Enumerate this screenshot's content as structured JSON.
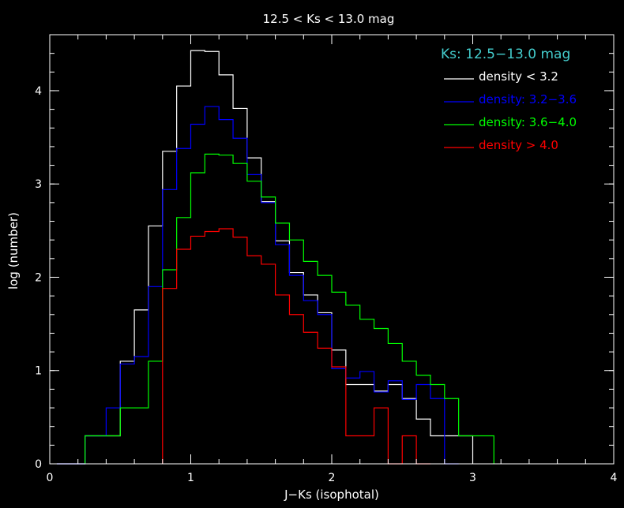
{
  "chart_data": {
    "type": "line",
    "step": true,
    "title": "12.5 < Ks < 13.0 mag",
    "xlabel": "J−Ks (isophotal)",
    "ylabel": "log (number)",
    "xlim": [
      0,
      4
    ],
    "ylim": [
      0,
      4.6
    ],
    "xticks": [
      0,
      1,
      2,
      3,
      4
    ],
    "yticks": [
      0,
      1,
      2,
      3,
      4
    ],
    "xtick_labels": [
      "0",
      "1",
      "2",
      "3",
      "4"
    ],
    "ytick_labels": [
      "0",
      "1",
      "2",
      "3",
      "4"
    ],
    "grid": false,
    "legend": {
      "placement": "top-right",
      "title": "Ks: 12.5−13.0 mag",
      "title_color": "#44cccc"
    },
    "series": [
      {
        "name": "density < 3.2",
        "color": "#ffffff",
        "edges": [
          0.05,
          0.25,
          0.5,
          0.6,
          0.7,
          0.8,
          0.9,
          1.0,
          1.1,
          1.2,
          1.3,
          1.4,
          1.5,
          1.6,
          1.7,
          1.8,
          1.9,
          2.0,
          2.1,
          2.3,
          2.4,
          2.5,
          2.6,
          2.7,
          2.8,
          3.0
        ],
        "values": [
          0.0,
          0.3,
          1.1,
          1.65,
          2.55,
          3.35,
          4.05,
          4.43,
          4.42,
          4.17,
          3.81,
          3.28,
          2.81,
          2.39,
          2.05,
          1.81,
          1.62,
          1.22,
          0.85,
          0.78,
          0.85,
          0.7,
          0.48,
          0.3,
          0.3
        ]
      },
      {
        "name": "density: 3.2−3.6",
        "color": "#0000ff",
        "edges": [
          0.05,
          0.25,
          0.4,
          0.5,
          0.6,
          0.7,
          0.8,
          0.9,
          1.0,
          1.1,
          1.2,
          1.3,
          1.4,
          1.5,
          1.6,
          1.7,
          1.8,
          1.9,
          2.0,
          2.1,
          2.2,
          2.3,
          2.4,
          2.5,
          2.6,
          2.7,
          2.8,
          2.9
        ],
        "values": [
          0.0,
          0.3,
          0.6,
          1.07,
          1.15,
          1.9,
          2.94,
          3.38,
          3.64,
          3.83,
          3.69,
          3.49,
          3.1,
          2.8,
          2.35,
          2.02,
          1.75,
          1.6,
          1.02,
          0.92,
          0.99,
          0.77,
          0.89,
          0.69,
          0.85,
          0.7,
          0.0
        ]
      },
      {
        "name": "density: 3.6−4.0",
        "color": "#00ff00",
        "edges": [
          0.25,
          0.5,
          0.7,
          0.8,
          0.9,
          1.0,
          1.1,
          1.2,
          1.3,
          1.4,
          1.5,
          1.6,
          1.7,
          1.8,
          1.9,
          2.0,
          2.1,
          2.2,
          2.3,
          2.4,
          2.5,
          2.6,
          2.7,
          2.8,
          2.9,
          3.15
        ],
        "values": [
          0.3,
          0.6,
          1.1,
          2.08,
          2.64,
          3.12,
          3.32,
          3.31,
          3.22,
          3.03,
          2.86,
          2.58,
          2.4,
          2.17,
          2.02,
          1.84,
          1.7,
          1.55,
          1.45,
          1.29,
          1.1,
          0.95,
          0.85,
          0.7,
          0.3
        ]
      },
      {
        "name": "density > 4.0",
        "color": "#ff0000",
        "edges": [
          0.8,
          0.9,
          1.0,
          1.1,
          1.2,
          1.3,
          1.4,
          1.5,
          1.6,
          1.7,
          1.8,
          1.9,
          2.0,
          2.1,
          2.3,
          2.4,
          2.5,
          2.6,
          2.7
        ],
        "values": [
          1.88,
          2.3,
          2.44,
          2.49,
          2.52,
          2.43,
          2.23,
          2.14,
          1.81,
          1.6,
          1.41,
          1.24,
          1.04,
          0.3,
          0.6,
          0.0,
          0.3,
          0.0
        ]
      }
    ]
  }
}
